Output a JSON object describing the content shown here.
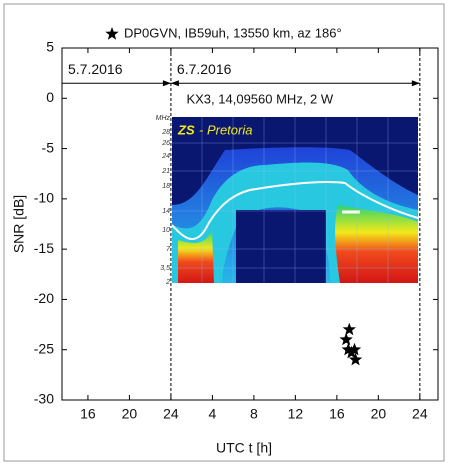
{
  "chart_data": {
    "type": "scatter",
    "x_label": "UTC t [h]",
    "y_label": "SNR [dB]",
    "xlim": [
      13.5,
      49.75
    ],
    "ylim": [
      -30,
      5
    ],
    "xticks": [
      16,
      20,
      24,
      {
        "value": 28,
        "label": "4"
      },
      {
        "value": 32,
        "label": "8"
      },
      {
        "value": 36,
        "label": "12"
      },
      {
        "value": 40,
        "label": "16"
      },
      {
        "value": 44,
        "label": "20"
      },
      {
        "value": 48,
        "label": "24"
      }
    ],
    "yticks": [
      -30,
      -25,
      -20,
      -15,
      -10,
      -5,
      0,
      5
    ],
    "series": [
      {
        "name": "DP0GVN, IB59uh, 13550 km, az 186°",
        "color": "#000000",
        "marker": "star",
        "x": [
          41.2,
          40.9,
          41.1,
          41.7,
          41.8,
          41.4
        ],
        "values": [
          -23,
          -24,
          -25,
          -25,
          -26,
          -25.3
        ]
      }
    ],
    "legend": "top",
    "day_markers": [
      {
        "label": "5.7.2016",
        "from": 13.5,
        "to": 24
      },
      {
        "label": "6.7.2016",
        "from": 24,
        "to": 48
      }
    ],
    "arrow_level": 1.5,
    "annotation": "KX3, 14,09560 MHz, 2 W",
    "inset": {
      "title_call": "ZS",
      "title_place": "- Pretoria",
      "labels": [
        "MHz",
        "28",
        "26",
        "24",
        "21",
        "18",
        "14",
        "10",
        "7",
        "3,5",
        "2"
      ]
    }
  }
}
